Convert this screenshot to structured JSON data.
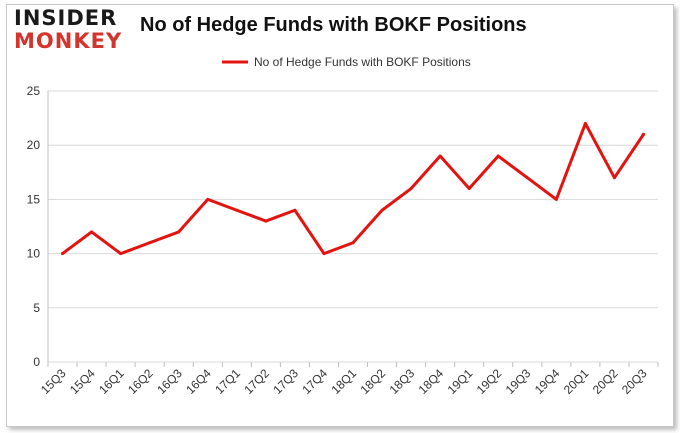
{
  "logo": {
    "line1": "INSIDER",
    "line2": "MONKEY"
  },
  "chart_data": {
    "type": "line",
    "title": "No of Hedge Funds with BOKF Positions",
    "xlabel": "",
    "ylabel": "",
    "categories": [
      "15Q3",
      "15Q4",
      "16Q1",
      "16Q2",
      "16Q3",
      "16Q4",
      "17Q1",
      "17Q2",
      "17Q3",
      "17Q4",
      "18Q1",
      "18Q2",
      "18Q3",
      "18Q4",
      "19Q1",
      "19Q2",
      "19Q3",
      "19Q4",
      "20Q1",
      "20Q2",
      "20Q3"
    ],
    "series": [
      {
        "name": "No of Hedge Funds with BOKF Positions",
        "color": "#e3130f",
        "values": [
          10,
          12,
          10,
          11,
          12,
          15,
          14,
          13,
          14,
          10,
          11,
          14,
          16,
          19,
          16,
          19,
          17,
          15,
          22,
          17,
          21
        ]
      }
    ],
    "ylim": [
      0,
      25
    ],
    "yticks": [
      0,
      5,
      10,
      15,
      20,
      25
    ],
    "grid": true,
    "legend_position": "top-center"
  }
}
